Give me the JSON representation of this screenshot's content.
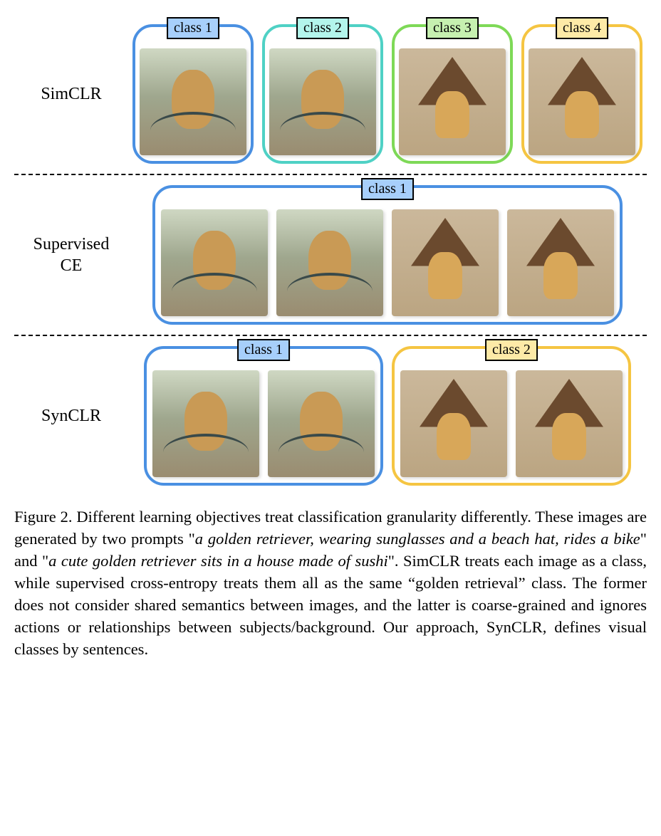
{
  "colors": {
    "c1_border": "#4a90e2",
    "c1_fill": "#a7cffb",
    "c2_border": "#4fd1c5",
    "c2_fill": "#b3f5ec",
    "c3_border": "#7ed957",
    "c3_fill": "#c6f0b0",
    "c4_border": "#f5c542",
    "c4_fill": "#fdeaa7"
  },
  "labels": {
    "class1": "class 1",
    "class2": "class 2",
    "class3": "class 3",
    "class4": "class 4"
  },
  "rows": {
    "simclr": "SimCLR",
    "supervised_ce_l1": "Supervised",
    "supervised_ce_l2": "CE",
    "synclr": "SynCLR"
  },
  "caption": {
    "fig_label": "Figure 2.",
    "p1": "Different learning objectives treat classification granularity differently. These images are generated by two prompts \"",
    "prompt1": "a golden retriever, wearing sunglasses and a beach hat, rides a bike",
    "p2": "\" and \"",
    "prompt2": "a cute golden retriever sits in a house made of sushi",
    "p3": "\". SimCLR treats each image as a class, while supervised cross-entropy treats them all as the same “golden retrieval” class. The former does not consider shared semantics between images, and the latter is coarse-grained and ignores actions or relationships between subjects/background. Our approach, SynCLR, defines visual classes by sentences."
  }
}
